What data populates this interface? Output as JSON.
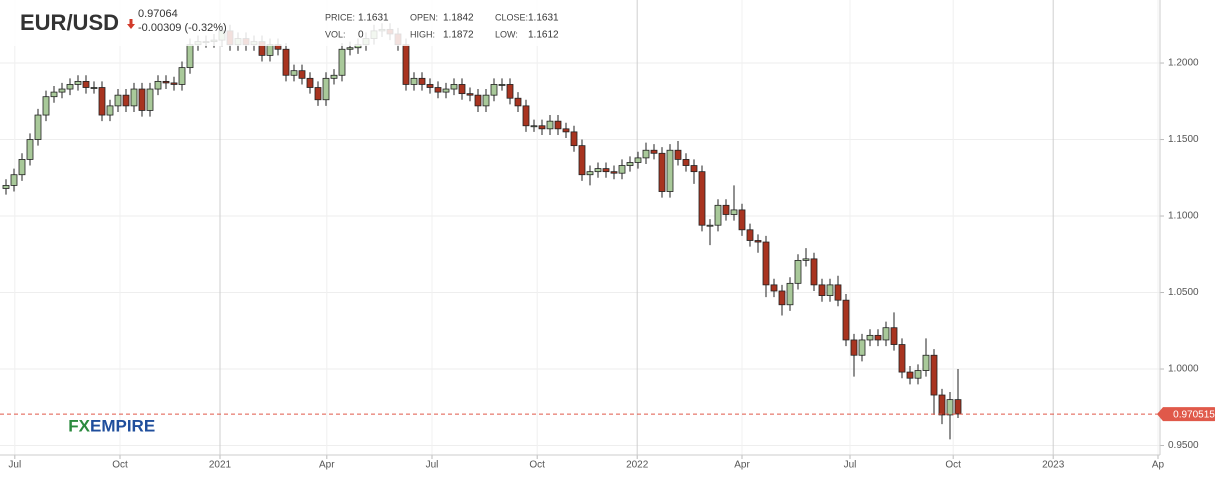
{
  "chart_data": {
    "type": "candlestick",
    "symbol": "EUR/USD",
    "price": "0.97064",
    "change": "-0.00309 (-0.32%)",
    "info": [
      {
        "label": "PRICE:",
        "value": "1.1631"
      },
      {
        "label": "OPEN:",
        "value": "1.1842"
      },
      {
        "label": "CLOSE:",
        "value": "1.1631"
      },
      {
        "label": "VOL:",
        "value": "0"
      },
      {
        "label": "HIGH:",
        "value": "1.1872"
      },
      {
        "label": "LOW:",
        "value": "1.1612"
      }
    ],
    "logo": [
      "FX",
      "EMPIRE"
    ],
    "up_color": "#a9c99a",
    "down_color": "#a83420",
    "last_price": 0.970515,
    "last_price_color": "#e0594a",
    "xlim": [
      -0.75,
      144.25
    ],
    "xticks": [
      {
        "value": 1.1,
        "label": "Jul"
      },
      {
        "value": 14.25,
        "label": "Oct"
      },
      {
        "value": 26.75,
        "label": "2021"
      },
      {
        "value": 40.1,
        "label": "Apr"
      },
      {
        "value": 53.25,
        "label": "Jul"
      },
      {
        "value": 66.4,
        "label": "Oct"
      },
      {
        "value": 78.9,
        "label": "2022"
      },
      {
        "value": 92,
        "label": "Apr"
      },
      {
        "value": 105.5,
        "label": "Jul"
      },
      {
        "value": 118.4,
        "label": "Oct"
      },
      {
        "value": 130.9,
        "label": "2023"
      },
      {
        "value": 144,
        "label": "Ap"
      }
    ],
    "ylim": [
      0.9438,
      1.2412
    ],
    "yticks": [
      {
        "value": 0.95,
        "label": "0.9500"
      },
      {
        "value": 1.0,
        "label": "1.0000"
      },
      {
        "value": 1.05,
        "label": "1.0500"
      },
      {
        "value": 1.1,
        "label": "1.1000"
      },
      {
        "value": 1.15,
        "label": "1.1500"
      },
      {
        "value": 1.2,
        "label": "1.2000"
      }
    ],
    "grid": true,
    "open": [
      1.118,
      1.12,
      1.127,
      1.137,
      1.15,
      1.166,
      1.178,
      1.181,
      1.183,
      1.186,
      1.188,
      1.184,
      1.184,
      1.166,
      1.172,
      1.179,
      1.172,
      1.183,
      1.169,
      1.183,
      1.188,
      1.187,
      1.186,
      1.197,
      1.212,
      1.214,
      1.214,
      1.215,
      1.221,
      1.212,
      1.216,
      1.212,
      1.214,
      1.205,
      1.212,
      1.209,
      1.192,
      1.195,
      1.19,
      1.184,
      1.176,
      1.19,
      1.192,
      1.209,
      1.21,
      1.212,
      1.216,
      1.221,
      1.222,
      1.219,
      1.212,
      1.186,
      1.19,
      1.186,
      1.184,
      1.181,
      1.183,
      1.186,
      1.18,
      1.179,
      1.172,
      1.179,
      1.186,
      1.186,
      1.177,
      1.172,
      1.159,
      1.159,
      1.157,
      1.162,
      1.157,
      1.155,
      1.146,
      1.127,
      1.129,
      1.131,
      1.129,
      1.128,
      1.133,
      1.135,
      1.138,
      1.143,
      1.141,
      1.116,
      1.143,
      1.137,
      1.133,
      1.129,
      1.094,
      1.094,
      1.107,
      1.101,
      1.104,
      1.091,
      1.084,
      1.083,
      1.055,
      1.051,
      1.042,
      1.056,
      1.071,
      1.072,
      1.055,
      1.048,
      1.055,
      1.045,
      1.019,
      1.009,
      1.019,
      1.022,
      1.019,
      1.027,
      1.016,
      0.998,
      0.994,
      0.999,
      1.009,
      0.983,
      0.97,
      0.98
    ],
    "high": [
      1.124,
      1.131,
      1.141,
      1.154,
      1.17,
      1.182,
      1.185,
      1.187,
      1.19,
      1.192,
      1.192,
      1.188,
      1.188,
      1.176,
      1.183,
      1.183,
      1.187,
      1.187,
      1.187,
      1.192,
      1.192,
      1.191,
      1.201,
      1.216,
      1.218,
      1.218,
      1.219,
      1.225,
      1.225,
      1.22,
      1.22,
      1.218,
      1.218,
      1.216,
      1.216,
      1.213,
      1.199,
      1.199,
      1.194,
      1.188,
      1.194,
      1.196,
      1.213,
      1.214,
      1.216,
      1.22,
      1.225,
      1.226,
      1.226,
      1.223,
      1.216,
      1.194,
      1.194,
      1.19,
      1.188,
      1.187,
      1.19,
      1.19,
      1.184,
      1.183,
      1.183,
      1.19,
      1.19,
      1.19,
      1.181,
      1.176,
      1.163,
      1.163,
      1.166,
      1.166,
      1.161,
      1.159,
      1.15,
      1.133,
      1.135,
      1.135,
      1.133,
      1.137,
      1.139,
      1.142,
      1.148,
      1.147,
      1.145,
      1.147,
      1.149,
      1.141,
      1.137,
      1.133,
      1.098,
      1.111,
      1.111,
      1.12,
      1.108,
      1.095,
      1.088,
      1.087,
      1.059,
      1.055,
      1.06,
      1.075,
      1.079,
      1.076,
      1.059,
      1.059,
      1.061,
      1.049,
      1.023,
      1.023,
      1.026,
      1.026,
      1.031,
      1.037,
      1.02,
      1.002,
      1.003,
      1.02,
      1.013,
      0.987,
      0.985,
      1.0
    ],
    "low": [
      1.114,
      1.116,
      1.123,
      1.133,
      1.146,
      1.162,
      1.174,
      1.177,
      1.179,
      1.182,
      1.18,
      1.18,
      1.162,
      1.162,
      1.168,
      1.168,
      1.168,
      1.165,
      1.165,
      1.179,
      1.183,
      1.182,
      1.182,
      1.193,
      1.208,
      1.21,
      1.21,
      1.211,
      1.208,
      1.208,
      1.208,
      1.208,
      1.201,
      1.201,
      1.205,
      1.188,
      1.188,
      1.186,
      1.18,
      1.172,
      1.172,
      1.186,
      1.188,
      1.205,
      1.206,
      1.208,
      1.212,
      1.217,
      1.215,
      1.208,
      1.182,
      1.182,
      1.182,
      1.18,
      1.177,
      1.177,
      1.179,
      1.176,
      1.175,
      1.168,
      1.168,
      1.175,
      1.182,
      1.173,
      1.168,
      1.155,
      1.155,
      1.153,
      1.153,
      1.153,
      1.151,
      1.142,
      1.123,
      1.12,
      1.125,
      1.125,
      1.124,
      1.124,
      1.129,
      1.131,
      1.134,
      1.137,
      1.112,
      1.112,
      1.133,
      1.129,
      1.121,
      1.09,
      1.081,
      1.09,
      1.097,
      1.097,
      1.087,
      1.08,
      1.076,
      1.047,
      1.047,
      1.035,
      1.038,
      1.052,
      1.067,
      1.051,
      1.044,
      1.044,
      1.041,
      1.015,
      0.995,
      1.005,
      1.015,
      1.015,
      1.015,
      1.012,
      0.994,
      0.99,
      0.99,
      0.995,
      0.97,
      0.964,
      0.954,
      0.968
    ],
    "close": [
      1.12,
      1.127,
      1.137,
      1.15,
      1.166,
      1.178,
      1.181,
      1.183,
      1.186,
      1.188,
      1.184,
      1.184,
      1.166,
      1.172,
      1.179,
      1.172,
      1.183,
      1.169,
      1.183,
      1.188,
      1.187,
      1.186,
      1.197,
      1.212,
      1.214,
      1.214,
      1.215,
      1.221,
      1.212,
      1.216,
      1.212,
      1.214,
      1.205,
      1.212,
      1.209,
      1.192,
      1.195,
      1.19,
      1.184,
      1.176,
      1.19,
      1.192,
      1.209,
      1.21,
      1.212,
      1.216,
      1.221,
      1.222,
      1.219,
      1.212,
      1.186,
      1.19,
      1.186,
      1.184,
      1.181,
      1.183,
      1.186,
      1.18,
      1.179,
      1.172,
      1.179,
      1.186,
      1.186,
      1.177,
      1.172,
      1.159,
      1.159,
      1.157,
      1.162,
      1.157,
      1.155,
      1.146,
      1.127,
      1.129,
      1.131,
      1.129,
      1.128,
      1.133,
      1.135,
      1.138,
      1.143,
      1.141,
      1.116,
      1.143,
      1.137,
      1.133,
      1.129,
      1.094,
      1.094,
      1.107,
      1.101,
      1.104,
      1.091,
      1.084,
      1.083,
      1.055,
      1.051,
      1.042,
      1.056,
      1.071,
      1.072,
      1.055,
      1.048,
      1.055,
      1.045,
      1.019,
      1.009,
      1.019,
      1.022,
      1.019,
      1.027,
      1.016,
      0.998,
      0.994,
      0.999,
      1.009,
      0.983,
      0.97,
      0.98,
      0.9706
    ]
  }
}
